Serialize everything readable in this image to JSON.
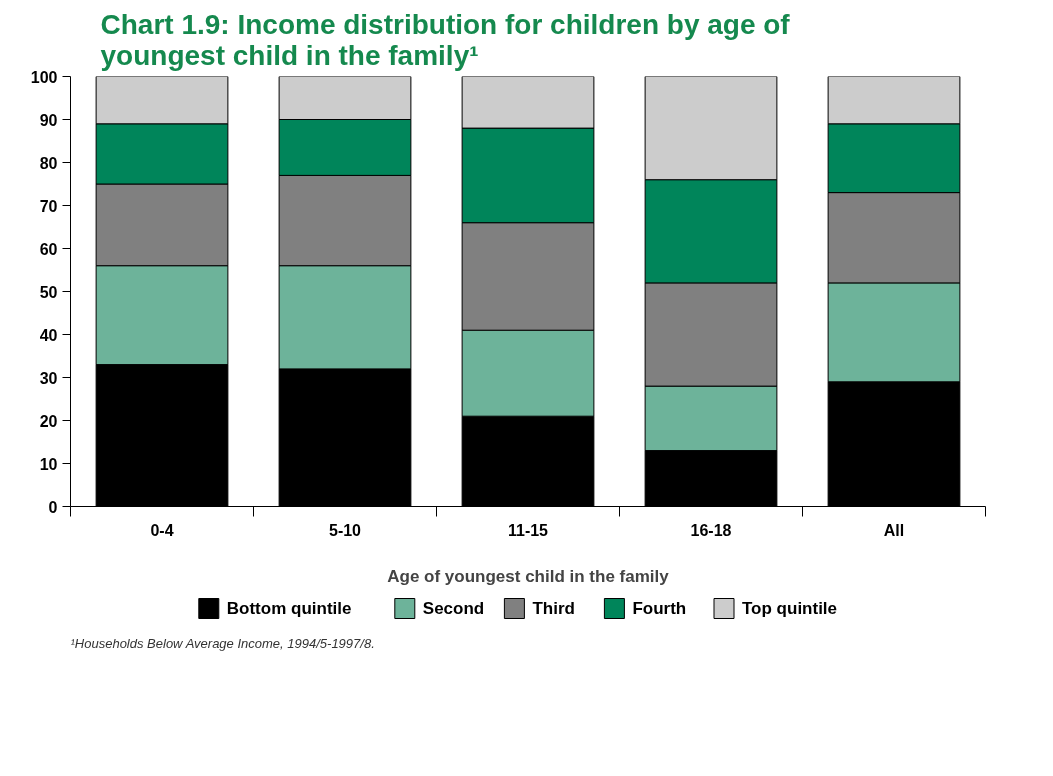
{
  "chart_data": {
    "type": "bar",
    "stacked": true,
    "title": "Chart 1.9: Income distribution for children by age of youngest child in the family¹",
    "xlabel": "Age of youngest child in the family",
    "categories": [
      "0-4",
      "5-10",
      "11-15",
      "16-18",
      "All"
    ],
    "series": [
      {
        "name": "Bottom quintile",
        "color": "#000000",
        "values": [
          33,
          32,
          21,
          13,
          29
        ]
      },
      {
        "name": "Second",
        "color": "#6db39a",
        "values": [
          23,
          24,
          20,
          15,
          23
        ]
      },
      {
        "name": "Third",
        "color": "#808080",
        "values": [
          19,
          21,
          25,
          24,
          21
        ]
      },
      {
        "name": "Fourth",
        "color": "#00855a",
        "values": [
          14,
          13,
          22,
          24,
          16
        ]
      },
      {
        "name": "Top quintile",
        "color": "#cccccc",
        "values": [
          11,
          10,
          12,
          24,
          11
        ]
      }
    ],
    "ylim": [
      0,
      100
    ],
    "yticks": [
      0,
      10,
      20,
      30,
      40,
      50,
      60,
      70,
      80,
      90,
      100
    ],
    "grid": false,
    "legend": "bottom",
    "annotations": [
      "¹Households Below Average Income, 1994/5-1997/8."
    ]
  }
}
